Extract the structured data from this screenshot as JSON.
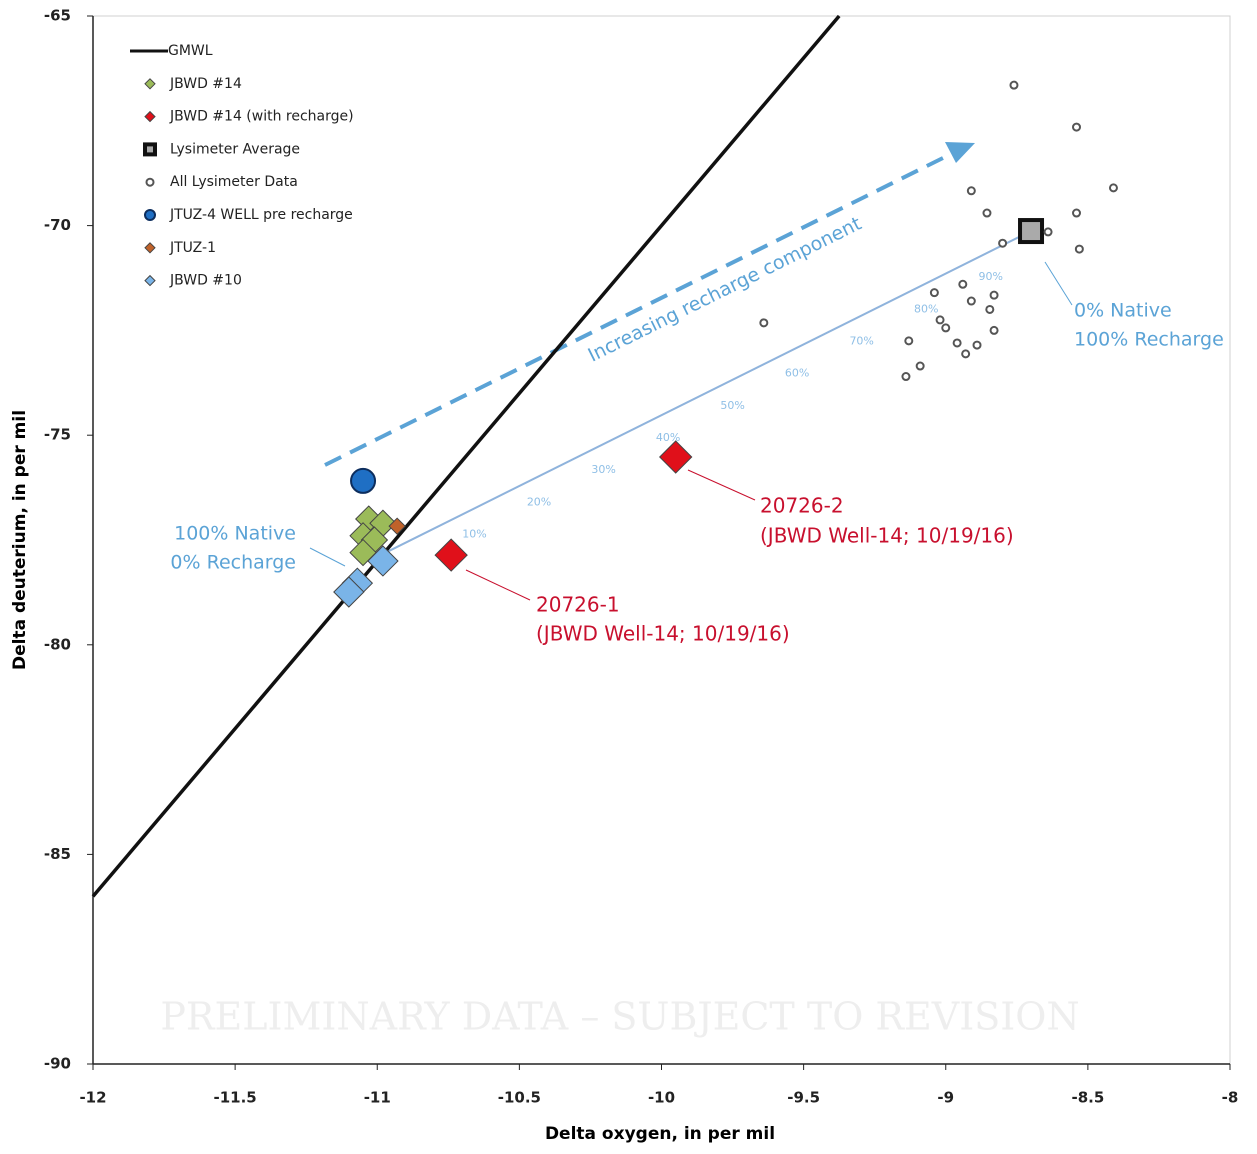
{
  "chart_data": {
    "type": "scatter",
    "x_label": "Delta oxygen, in per mil",
    "y_label": "Delta deuterium, in per mil",
    "xlim": [
      -12,
      -8
    ],
    "xticks": [
      -12,
      -11.5,
      -11,
      -10.5,
      -10,
      -9.5,
      -9,
      -8.5,
      -8
    ],
    "ylim": [
      -90,
      -65
    ],
    "yticks": [
      -90,
      -85,
      -80,
      -75,
      -70,
      -65
    ],
    "grid": false,
    "legend": "top-left",
    "series": [
      {
        "name": "GMWL",
        "marker": "line",
        "color": "#111111",
        "x": [
          -12,
          -9.375
        ],
        "values": [
          -86,
          -65
        ]
      },
      {
        "name": "JBWD #14",
        "marker": "diamond",
        "size": 13,
        "color": "#9bbb59",
        "x": [
          -11.03,
          -10.98,
          -11.05,
          -11.01,
          -11.05
        ],
        "values": [
          -77.0,
          -77.1,
          -77.4,
          -77.5,
          -77.8
        ]
      },
      {
        "name": "JBWD #14 (with recharge)",
        "marker": "diamond",
        "size": 16,
        "color": "#e0101a",
        "x": [
          -10.74,
          -9.95
        ],
        "values": [
          -77.86,
          -75.52
        ]
      },
      {
        "name": "Lysimeter Average",
        "marker": "square",
        "size": 11,
        "color": "#111111",
        "x": [
          -8.7
        ],
        "values": [
          -70.13
        ]
      },
      {
        "name": "All Lysimeter Data",
        "marker": "open-circle",
        "size": 3.5,
        "color": "#555555",
        "x": [
          -8.76,
          -8.54,
          -8.41,
          -8.91,
          -8.855,
          -8.54,
          -8.8,
          -8.53,
          -9.64,
          -9.04,
          -8.94,
          -8.91,
          -8.83,
          -8.845,
          -9.02,
          -9.0,
          -8.83,
          -9.13,
          -8.96,
          -8.89,
          -8.93,
          -9.09,
          -9.14,
          -8.64
        ],
        "values": [
          -66.65,
          -67.65,
          -69.1,
          -69.17,
          -69.7,
          -69.7,
          -70.42,
          -70.56,
          -72.32,
          -71.6,
          -71.4,
          -71.8,
          -71.66,
          -72.0,
          -72.25,
          -72.44,
          -72.5,
          -72.75,
          -72.8,
          -72.85,
          -73.06,
          -73.35,
          -73.6,
          -70.15
        ]
      },
      {
        "name": "JTUZ-4 WELL pre recharge",
        "marker": "circle",
        "size": 12,
        "color": "#1f6fc4",
        "x": [
          -11.05
        ],
        "values": [
          -76.09
        ]
      },
      {
        "name": "JTUZ-1",
        "marker": "diamond",
        "size": 8,
        "color": "#c0622a",
        "x": [
          -10.93
        ],
        "values": [
          -77.17
        ]
      },
      {
        "name": "JBWD #10",
        "marker": "diamond",
        "size": 15,
        "color": "#7ab4e8",
        "x": [
          -10.98,
          -11.07,
          -11.1
        ],
        "values": [
          -78.0,
          -78.53,
          -78.74
        ]
      }
    ],
    "mixing_line": {
      "color": "#8fb3dc",
      "x": [
        -10.97,
        -8.7
      ],
      "values": [
        -77.8,
        -70.13
      ],
      "labels": [
        "10%",
        "20%",
        "30%",
        "40%",
        "50%",
        "60%",
        "70%",
        "80%",
        "90%"
      ]
    },
    "annotations": {
      "arrow": "Increasing recharge component",
      "end_top": "0% Native",
      "end_bottom": "100% Recharge",
      "start_top": "100% Native",
      "start_bottom": "0% Recharge",
      "s2_id": "20726-2",
      "s2_desc": "(JBWD Well-14; 10/19/16)",
      "s1_id": "20726-1",
      "s1_desc": "(JBWD Well-14; 10/19/16)",
      "watermark": "PRELIMINARY DATA – SUBJECT TO REVISION"
    }
  }
}
